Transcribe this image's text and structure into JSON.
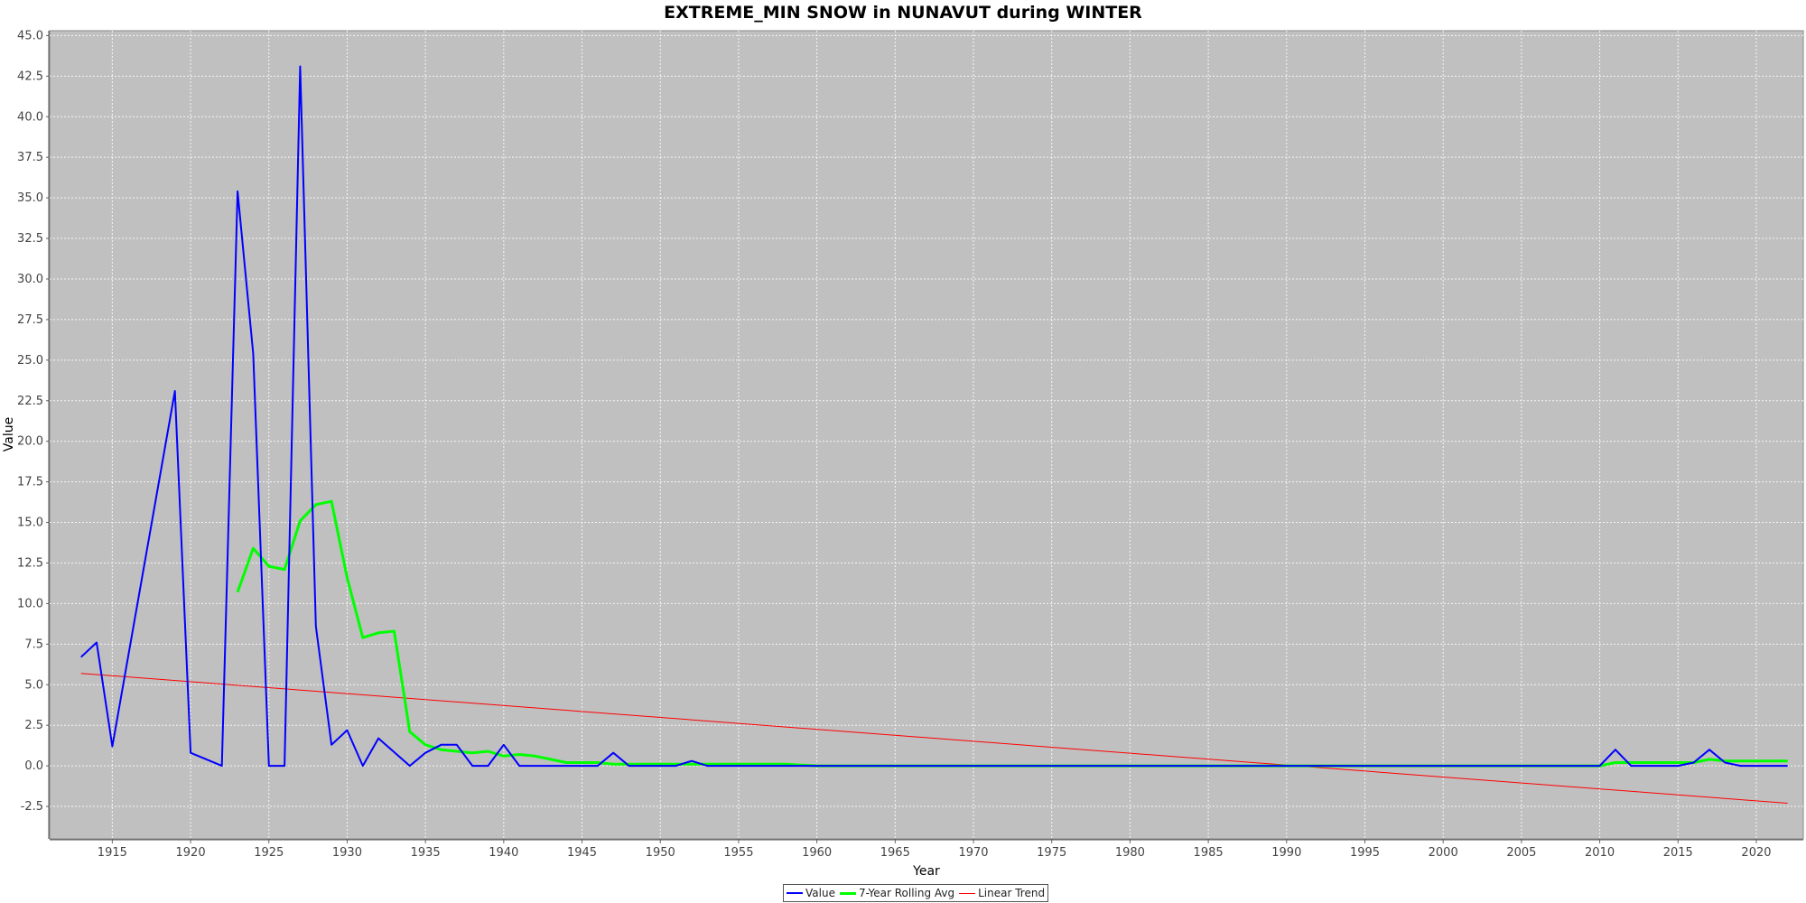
{
  "chart_data": {
    "type": "line",
    "title": "EXTREME_MIN SNOW in NUNAVUT during WINTER",
    "xlabel": "Year",
    "ylabel": "Value",
    "xlim": [
      1911,
      2023
    ],
    "ylim": [
      -4.5,
      45.3
    ],
    "x_ticks": [
      1915,
      1920,
      1925,
      1930,
      1935,
      1940,
      1945,
      1950,
      1955,
      1960,
      1965,
      1970,
      1975,
      1980,
      1985,
      1990,
      1995,
      2000,
      2005,
      2010,
      2015,
      2020
    ],
    "y_ticks": [
      -2.5,
      0.0,
      2.5,
      5.0,
      7.5,
      10.0,
      12.5,
      15.0,
      17.5,
      20.0,
      22.5,
      25.0,
      27.5,
      30.0,
      32.5,
      35.0,
      37.5,
      40.0,
      42.5,
      45.0
    ],
    "y_tick_labels": [
      "-2.5",
      "0.0",
      "2.5",
      "5.0",
      "7.5",
      "10.0",
      "12.5",
      "15.0",
      "17.5",
      "20.0",
      "22.5",
      "25.0",
      "27.5",
      "30.0",
      "32.5",
      "35.0",
      "37.5",
      "40.0",
      "42.5",
      "45.0"
    ],
    "grid": true,
    "legend_position": "bottom-center",
    "series": [
      {
        "name": "Value",
        "color": "#0000ff",
        "points": [
          [
            1913,
            6.7
          ],
          [
            1914,
            7.6
          ],
          [
            1915,
            1.2
          ],
          [
            1919,
            23.1
          ],
          [
            1920,
            0.8
          ],
          [
            1922,
            0.0
          ],
          [
            1923,
            35.4
          ],
          [
            1924,
            25.4
          ],
          [
            1925,
            0.0
          ],
          [
            1926,
            0.0
          ],
          [
            1927,
            43.1
          ],
          [
            1928,
            8.6
          ],
          [
            1929,
            1.3
          ],
          [
            1930,
            2.2
          ],
          [
            1931,
            0.0
          ],
          [
            1932,
            1.7
          ],
          [
            1934,
            0.0
          ],
          [
            1935,
            0.8
          ],
          [
            1936,
            1.3
          ],
          [
            1937,
            1.3
          ],
          [
            1938,
            0.0
          ],
          [
            1939,
            0.0
          ],
          [
            1940,
            1.3
          ],
          [
            1941,
            0.0
          ],
          [
            1946,
            0.0
          ],
          [
            1947,
            0.8
          ],
          [
            1948,
            0.0
          ],
          [
            1951,
            0.0
          ],
          [
            1952,
            0.3
          ],
          [
            1953,
            0.0
          ],
          [
            2010,
            0.0
          ],
          [
            2011,
            1.0
          ],
          [
            2012,
            0.0
          ],
          [
            2015,
            0.0
          ],
          [
            2016,
            0.2
          ],
          [
            2017,
            1.0
          ],
          [
            2018,
            0.2
          ],
          [
            2019,
            0.0
          ],
          [
            2022,
            0.0
          ]
        ]
      },
      {
        "name": "7-Year Rolling Avg",
        "color": "#00ff00",
        "points": [
          [
            1923,
            10.7
          ],
          [
            1924,
            13.4
          ],
          [
            1925,
            12.3
          ],
          [
            1926,
            12.1
          ],
          [
            1927,
            15.1
          ],
          [
            1928,
            16.1
          ],
          [
            1929,
            16.3
          ],
          [
            1930,
            11.6
          ],
          [
            1931,
            7.9
          ],
          [
            1932,
            8.2
          ],
          [
            1933,
            8.3
          ],
          [
            1934,
            2.1
          ],
          [
            1935,
            1.3
          ],
          [
            1936,
            1.0
          ],
          [
            1937,
            0.9
          ],
          [
            1938,
            0.8
          ],
          [
            1939,
            0.9
          ],
          [
            1940,
            0.6
          ],
          [
            1941,
            0.7
          ],
          [
            1942,
            0.6
          ],
          [
            1943,
            0.4
          ],
          [
            1944,
            0.2
          ],
          [
            1945,
            0.2
          ],
          [
            1946,
            0.2
          ],
          [
            1947,
            0.1
          ],
          [
            1948,
            0.1
          ],
          [
            1950,
            0.1
          ],
          [
            1952,
            0.1
          ],
          [
            1955,
            0.1
          ],
          [
            1958,
            0.1
          ],
          [
            1960,
            0.0
          ],
          [
            2010,
            0.0
          ],
          [
            2011,
            0.2
          ],
          [
            2012,
            0.2
          ],
          [
            2015,
            0.2
          ],
          [
            2016,
            0.2
          ],
          [
            2017,
            0.4
          ],
          [
            2018,
            0.3
          ],
          [
            2019,
            0.3
          ],
          [
            2022,
            0.3
          ]
        ]
      },
      {
        "name": "Linear Trend",
        "color": "#ff0000",
        "points": [
          [
            1913,
            5.7
          ],
          [
            2022,
            -2.3
          ]
        ]
      }
    ]
  }
}
